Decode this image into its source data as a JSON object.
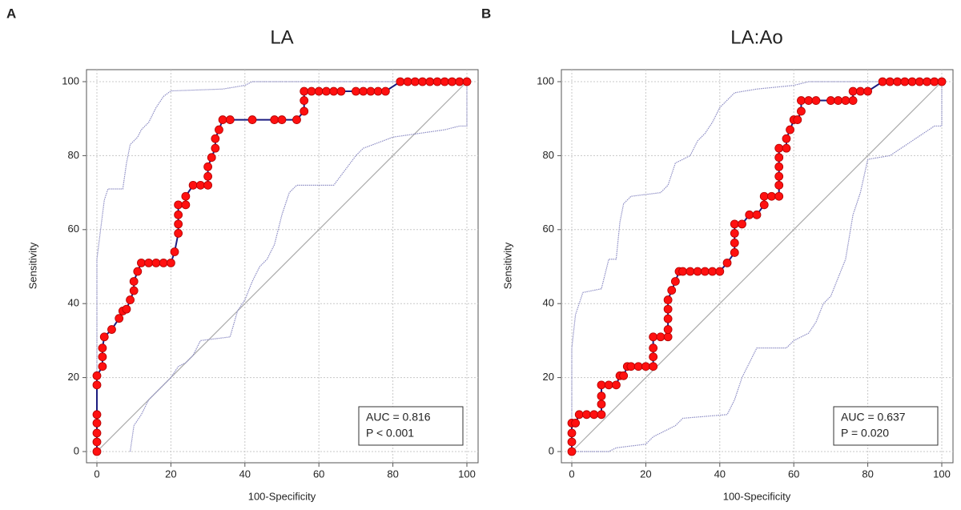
{
  "chart_data": [
    {
      "type": "line",
      "panel_label": "A",
      "title": "LA",
      "x_label": "100-Specificity",
      "y_label": "Sensitivity",
      "xlim": [
        0,
        100
      ],
      "ylim": [
        0,
        100
      ],
      "xticks": [
        0,
        20,
        40,
        60,
        80,
        100
      ],
      "yticks": [
        0,
        20,
        40,
        60,
        80,
        100
      ],
      "grid": true,
      "annotations": [
        "AUC = 0.816",
        "P < 0.001"
      ],
      "series": [
        {
          "color": "#aaaaaa",
          "style": "solid",
          "markers": false,
          "x": [
            0,
            100
          ],
          "values": [
            0,
            100
          ]
        },
        {
          "color": "#8c8cc4",
          "style": "dotted",
          "markers": false,
          "x": [
            0,
            0,
            1,
            2,
            3,
            7,
            8,
            9,
            11,
            12,
            14,
            16,
            18,
            20,
            34,
            40,
            42,
            100
          ],
          "values": [
            0,
            52,
            60,
            68,
            71,
            71,
            78,
            83,
            85,
            87,
            89,
            93,
            96,
            97.5,
            98,
            99,
            100,
            100
          ]
        },
        {
          "color": "#8c8cc4",
          "style": "dotted",
          "markers": false,
          "x": [
            9,
            10,
            12,
            14,
            20,
            22,
            24,
            26,
            28,
            36,
            38,
            40,
            42,
            44,
            46,
            48,
            50,
            52,
            54,
            64,
            70,
            72,
            80,
            94,
            98,
            100,
            100
          ],
          "values": [
            0,
            7,
            10,
            14,
            20,
            23,
            24,
            26,
            30,
            31,
            38,
            41,
            46,
            50,
            52,
            56,
            64,
            70,
            72,
            72,
            80,
            82,
            85,
            87,
            88,
            88,
            100
          ]
        },
        {
          "color": "#ff1010",
          "line_color": "#1c1c80",
          "style": "solid",
          "markers": true,
          "x": [
            0,
            0,
            0,
            0,
            0,
            0,
            0,
            1.5,
            1.5,
            1.5,
            2,
            4,
            6,
            7,
            8,
            9,
            10,
            10,
            11,
            12,
            14,
            16,
            18,
            20,
            21,
            22,
            22,
            22,
            22,
            24,
            24,
            26,
            28,
            30,
            30,
            30,
            31,
            32,
            32,
            33,
            34,
            36,
            42,
            48,
            50,
            54,
            56,
            56,
            56,
            58,
            60,
            62,
            64,
            66,
            70,
            72,
            74,
            76,
            78,
            82,
            84,
            86,
            88,
            90,
            92,
            94,
            96,
            98,
            100
          ],
          "values": [
            0,
            2.6,
            5,
            7.7,
            10,
            18,
            20.5,
            23,
            25.6,
            28,
            31,
            33,
            36,
            38,
            38.5,
            41,
            43.5,
            46,
            48.7,
            51,
            51,
            51,
            51,
            51,
            54,
            59,
            61.5,
            64,
            66.7,
            66.7,
            69,
            72,
            72,
            72,
            74.4,
            77,
            79.5,
            82,
            84.6,
            87,
            89.7,
            89.7,
            89.7,
            89.7,
            89.7,
            89.7,
            92,
            94.9,
            97.4,
            97.4,
            97.4,
            97.4,
            97.4,
            97.4,
            97.4,
            97.4,
            97.4,
            97.4,
            97.4,
            100,
            100,
            100,
            100,
            100,
            100,
            100,
            100,
            100,
            100
          ]
        }
      ]
    },
    {
      "type": "line",
      "panel_label": "B",
      "title": "LA:Ao",
      "x_label": "100-Specificity",
      "y_label": "Sensitivity",
      "xlim": [
        0,
        100
      ],
      "ylim": [
        0,
        100
      ],
      "xticks": [
        0,
        20,
        40,
        60,
        80,
        100
      ],
      "yticks": [
        0,
        20,
        40,
        60,
        80,
        100
      ],
      "grid": true,
      "annotations": [
        "AUC = 0.637",
        "P = 0.020"
      ],
      "series": [
        {
          "color": "#aaaaaa",
          "style": "solid",
          "markers": false,
          "x": [
            0,
            100
          ],
          "values": [
            0,
            100
          ]
        },
        {
          "color": "#8c8cc4",
          "style": "dotted",
          "markers": false,
          "x": [
            0,
            0,
            1,
            2,
            3,
            8,
            9,
            10,
            12,
            13,
            14,
            16,
            24,
            26,
            28,
            32,
            34,
            36,
            38,
            40,
            42,
            44,
            50,
            60,
            64,
            100
          ],
          "values": [
            0,
            28,
            37,
            40,
            43,
            44,
            48,
            52,
            52,
            62,
            67,
            69,
            70,
            72,
            78,
            80,
            84,
            86,
            89,
            93,
            95,
            97,
            98,
            99,
            100,
            100
          ]
        },
        {
          "color": "#8c8cc4",
          "style": "dotted",
          "markers": false,
          "x": [
            0,
            10,
            12,
            20,
            22,
            26,
            28,
            30,
            42,
            44,
            46,
            48,
            50,
            58,
            60,
            64,
            66,
            68,
            70,
            72,
            74,
            76,
            78,
            80,
            86,
            92,
            98,
            100,
            100
          ],
          "values": [
            0,
            0,
            1,
            2,
            4,
            6,
            7,
            9,
            10,
            14,
            20,
            24,
            28,
            28,
            30,
            32,
            35,
            40,
            42,
            47,
            52,
            64,
            70,
            79,
            80,
            84,
            88,
            88,
            100
          ]
        },
        {
          "color": "#ff1010",
          "line_color": "#1c1c80",
          "style": "solid",
          "markers": true,
          "x": [
            0,
            0,
            0,
            0,
            1,
            2,
            4,
            6,
            8,
            8,
            8,
            8,
            10,
            12,
            13,
            14,
            15,
            16,
            18,
            20,
            22,
            22,
            22,
            22,
            24,
            26,
            26,
            26,
            26,
            26,
            27,
            28,
            29,
            30,
            32,
            34,
            36,
            38,
            40,
            42,
            44,
            44,
            44,
            44,
            46,
            48,
            50,
            52,
            52,
            54,
            56,
            56,
            56,
            56,
            56,
            56,
            58,
            58,
            59,
            60,
            61,
            62,
            62,
            64,
            66,
            70,
            72,
            74,
            76,
            76,
            78,
            80,
            84,
            86,
            88,
            90,
            92,
            94,
            96,
            98,
            100
          ],
          "values": [
            0,
            2.6,
            5,
            7.7,
            7.7,
            10,
            10,
            10,
            10,
            12.8,
            15,
            18,
            18,
            18,
            20.5,
            20.5,
            23,
            23,
            23,
            23,
            23,
            25.6,
            28,
            31,
            31,
            31,
            33,
            35.9,
            38.5,
            41,
            43.6,
            46,
            48.7,
            48.7,
            48.7,
            48.7,
            48.7,
            48.7,
            48.7,
            51,
            53.8,
            56.4,
            59,
            61.5,
            61.5,
            64,
            64,
            66.7,
            69,
            69,
            69,
            72,
            74.4,
            77,
            79.5,
            82,
            82,
            84.6,
            87,
            89.7,
            89.7,
            92,
            94.9,
            94.9,
            94.9,
            94.9,
            94.9,
            94.9,
            94.9,
            97.4,
            97.4,
            97.4,
            100,
            100,
            100,
            100,
            100,
            100,
            100,
            100,
            100
          ]
        }
      ]
    }
  ]
}
